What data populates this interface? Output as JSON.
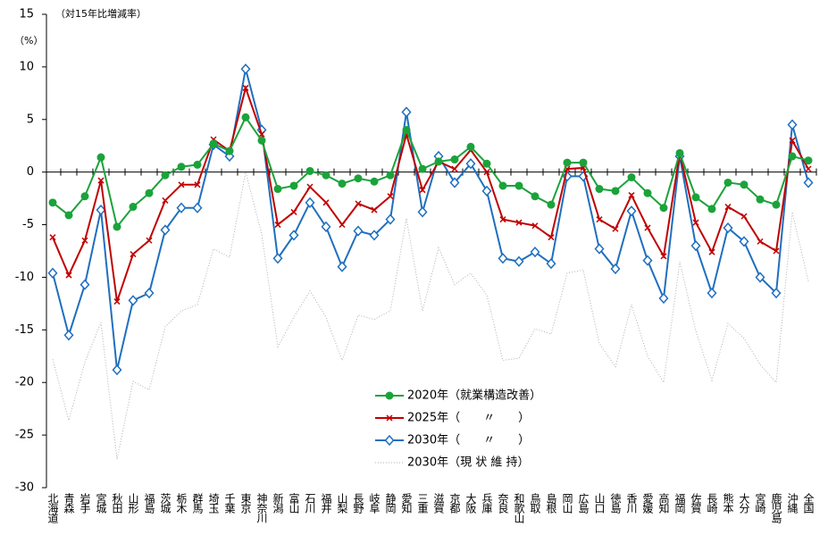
{
  "chart_data": {
    "type": "line",
    "annotations": [
      "（対15年比増減率）",
      "（%）"
    ],
    "categories": [
      "北海道",
      "青森",
      "岩手",
      "宮城",
      "秋田",
      "山形",
      "福島",
      "茨城",
      "栃木",
      "群馬",
      "埼玉",
      "千葉",
      "東京",
      "神奈川",
      "新潟",
      "富山",
      "石川",
      "福井",
      "山梨",
      "長野",
      "岐阜",
      "静岡",
      "愛知",
      "三重",
      "滋賀",
      "京都",
      "大阪",
      "兵庫",
      "奈良",
      "和歌山",
      "鳥取",
      "島根",
      "岡山",
      "広島",
      "山口",
      "徳島",
      "香川",
      "愛媛",
      "高知",
      "福岡",
      "佐賀",
      "長崎",
      "熊本",
      "大分",
      "宮崎",
      "鹿児島",
      "沖縄",
      "全国"
    ],
    "series": [
      {
        "name": "2020年（就業構造改善）",
        "color": "#1aa33a",
        "marker": "circle",
        "values": [
          -2.9,
          -4.1,
          -2.3,
          1.4,
          -5.2,
          -3.3,
          -2.0,
          -0.3,
          0.5,
          0.7,
          2.7,
          2.0,
          5.2,
          3.0,
          -1.6,
          -1.3,
          0.1,
          -0.3,
          -1.1,
          -0.6,
          -0.9,
          -0.3,
          4.0,
          0.3,
          1.0,
          1.2,
          2.4,
          0.8,
          -1.3,
          -1.3,
          -2.3,
          -3.1,
          0.9,
          0.9,
          -1.6,
          -1.8,
          -0.5,
          -2.0,
          -3.4,
          1.8,
          -2.4,
          -3.5,
          -1.0,
          -1.2,
          -2.6,
          -3.1,
          1.5,
          1.1
        ]
      },
      {
        "name": "2025年（　　〃　　）",
        "color": "#c00000",
        "marker": "x",
        "values": [
          -6.2,
          -9.8,
          -6.5,
          -0.8,
          -12.3,
          -7.8,
          -6.5,
          -2.7,
          -1.2,
          -1.2,
          3.1,
          2.0,
          8.0,
          3.6,
          -5.0,
          -3.8,
          -1.4,
          -2.9,
          -5.0,
          -3.0,
          -3.6,
          -2.3,
          3.6,
          -1.7,
          1.0,
          0.3,
          2.1,
          0.0,
          -4.5,
          -4.8,
          -5.1,
          -6.2,
          0.3,
          0.4,
          -4.5,
          -5.4,
          -2.2,
          -5.3,
          -8.0,
          1.8,
          -4.8,
          -7.6,
          -3.3,
          -4.2,
          -6.6,
          -7.5,
          3.0,
          0.3
        ]
      },
      {
        "name": "2030年（　　〃　　）",
        "color": "#1f6fbf",
        "marker": "diamond",
        "values": [
          -9.6,
          -15.5,
          -10.7,
          -3.6,
          -18.8,
          -12.2,
          -11.5,
          -5.5,
          -3.4,
          -3.4,
          2.6,
          1.5,
          9.8,
          4.0,
          -8.2,
          -6.0,
          -2.9,
          -5.2,
          -9.0,
          -5.6,
          -6.0,
          -4.5,
          5.7,
          -3.8,
          1.5,
          -1.0,
          0.8,
          -1.8,
          -8.2,
          -8.5,
          -7.6,
          -8.7,
          -0.4,
          -0.4,
          -7.3,
          -9.2,
          -3.7,
          -8.4,
          -12.0,
          1.5,
          -7.0,
          -11.5,
          -5.3,
          -6.6,
          -10.0,
          -11.5,
          4.5,
          -1.0
        ]
      },
      {
        "name": "2030年（現 状 維 持）",
        "color": "#b0b0b0",
        "marker": "none",
        "dash": "dotted",
        "values": [
          -17.8,
          -23.6,
          -18.1,
          -14.3,
          -27.3,
          -19.9,
          -20.7,
          -14.7,
          -13.2,
          -12.6,
          -7.3,
          -8.1,
          0.0,
          -5.9,
          -16.6,
          -13.8,
          -11.3,
          -13.8,
          -17.9,
          -13.6,
          -14.0,
          -13.2,
          -4.4,
          -13.2,
          -7.2,
          -10.7,
          -9.6,
          -11.7,
          -17.9,
          -17.7,
          -14.9,
          -15.4,
          -9.6,
          -9.3,
          -16.3,
          -18.5,
          -12.6,
          -17.5,
          -20.0,
          -8.5,
          -15.1,
          -19.8,
          -14.4,
          -15.8,
          -18.3,
          -20.0,
          -3.8,
          -10.4
        ]
      }
    ],
    "ylim": [
      -30,
      15
    ],
    "yticks": [
      -30,
      -25,
      -20,
      -15,
      -10,
      -5,
      0,
      5,
      10,
      15
    ],
    "grid": false
  }
}
